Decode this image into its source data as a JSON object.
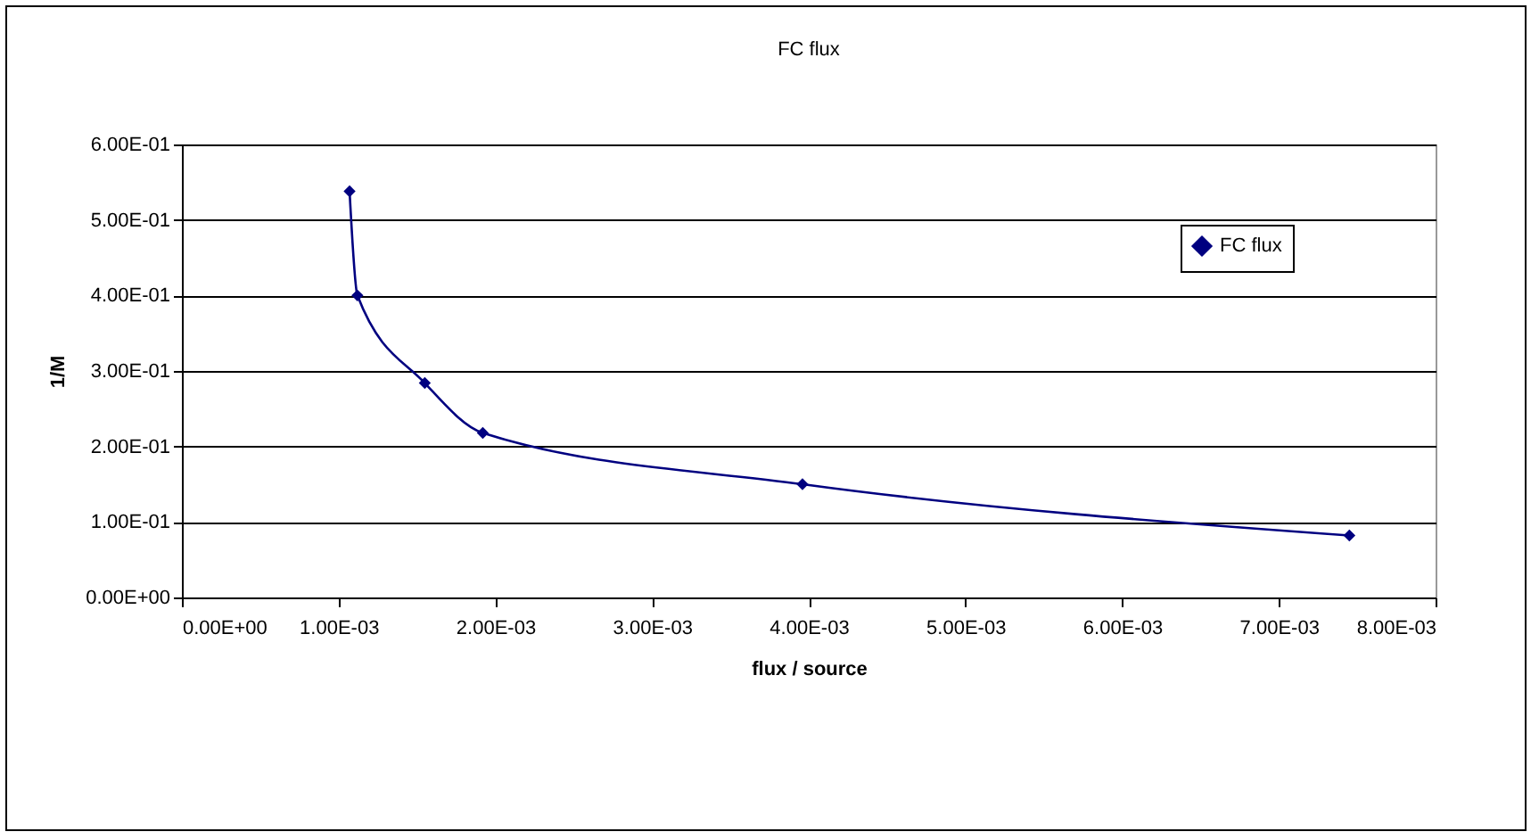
{
  "chart_data": {
    "type": "line",
    "title": "FC flux",
    "xlabel": "flux / source",
    "ylabel": "1/M",
    "x": [
      0.00107,
      0.00112,
      0.00155,
      0.00192,
      0.00396,
      0.00745
    ],
    "series": [
      {
        "name": "FC flux",
        "color": "#000080",
        "values": [
          0.538,
          0.4,
          0.284,
          0.218,
          0.15,
          0.082
        ]
      }
    ],
    "xlim": [
      0,
      0.008
    ],
    "xticks": [
      {
        "value": 0,
        "label": "0.00E+00"
      },
      {
        "value": 0.001,
        "label": "1.00E-03"
      },
      {
        "value": 0.002,
        "label": "2.00E-03"
      },
      {
        "value": 0.003,
        "label": "3.00E-03"
      },
      {
        "value": 0.004,
        "label": "4.00E-03"
      },
      {
        "value": 0.005,
        "label": "5.00E-03"
      },
      {
        "value": 0.006,
        "label": "6.00E-03"
      },
      {
        "value": 0.007,
        "label": "7.00E-03"
      },
      {
        "value": 0.008,
        "label": "8.00E-03"
      }
    ],
    "ylim": [
      0,
      0.6
    ],
    "yticks": [
      {
        "value": 0,
        "label": "0.00E+00"
      },
      {
        "value": 0.1,
        "label": "1.00E-01"
      },
      {
        "value": 0.2,
        "label": "2.00E-01"
      },
      {
        "value": 0.3,
        "label": "3.00E-01"
      },
      {
        "value": 0.4,
        "label": "4.00E-01"
      },
      {
        "value": 0.5,
        "label": "5.00E-01"
      },
      {
        "value": 0.6,
        "label": "6.00E-01"
      }
    ],
    "grid": "y",
    "legend": "right",
    "marker": "diamond",
    "line_style": "solid"
  }
}
